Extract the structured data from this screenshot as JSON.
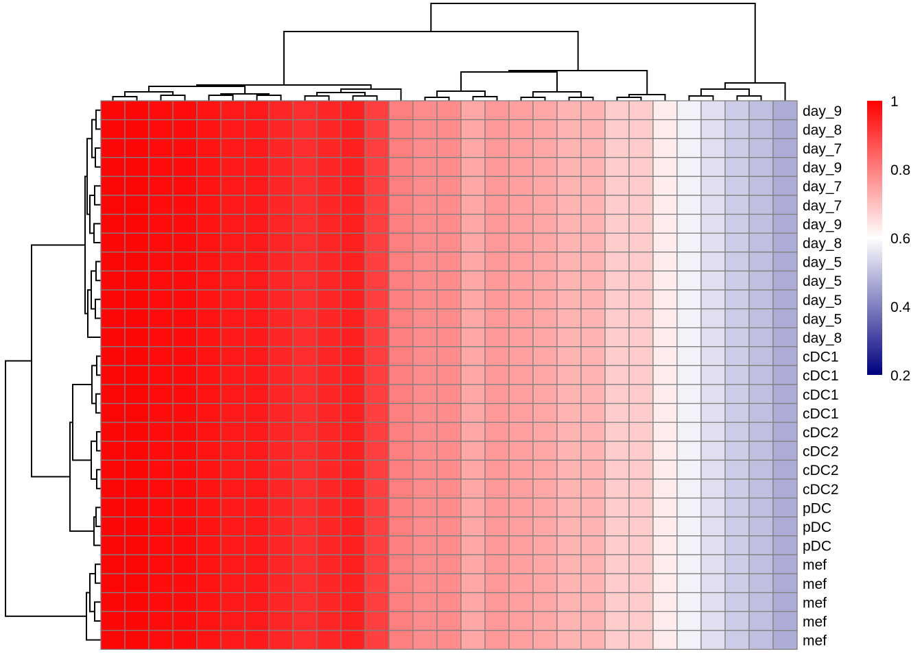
{
  "chart_data": {
    "type": "heatmap",
    "title": "",
    "row_labels": [
      "day_9",
      "day_8",
      "day_7",
      "day_9",
      "day_7",
      "day_7",
      "day_9",
      "day_8",
      "day_5",
      "day_5",
      "day_5",
      "day_5",
      "day_8",
      "cDC1",
      "cDC1",
      "cDC1",
      "cDC1",
      "cDC2",
      "cDC2",
      "cDC2",
      "cDC2",
      "pDC",
      "pDC",
      "pDC",
      "mef",
      "mef",
      "mef",
      "mef",
      "mef"
    ],
    "column_labels": [],
    "values": [
      [
        0.99,
        0.99,
        0.98,
        0.98,
        0.97,
        0.96,
        0.96,
        0.94,
        0.93,
        0.94,
        0.95,
        0.9,
        0.8,
        0.78,
        0.78,
        0.74,
        0.76,
        0.75,
        0.74,
        0.72,
        0.72,
        0.68,
        0.68,
        0.63,
        0.58,
        0.55,
        0.52,
        0.5,
        0.47
      ],
      [
        0.99,
        0.99,
        0.98,
        0.98,
        0.97,
        0.96,
        0.96,
        0.94,
        0.93,
        0.94,
        0.95,
        0.9,
        0.8,
        0.78,
        0.78,
        0.74,
        0.76,
        0.75,
        0.74,
        0.72,
        0.72,
        0.68,
        0.68,
        0.63,
        0.58,
        0.55,
        0.52,
        0.5,
        0.47
      ],
      [
        0.99,
        0.99,
        0.98,
        0.98,
        0.97,
        0.96,
        0.96,
        0.94,
        0.93,
        0.94,
        0.95,
        0.9,
        0.8,
        0.78,
        0.78,
        0.74,
        0.76,
        0.75,
        0.74,
        0.72,
        0.72,
        0.68,
        0.68,
        0.63,
        0.58,
        0.55,
        0.52,
        0.5,
        0.47
      ],
      [
        0.99,
        0.99,
        0.98,
        0.98,
        0.97,
        0.96,
        0.96,
        0.94,
        0.93,
        0.94,
        0.95,
        0.9,
        0.8,
        0.78,
        0.78,
        0.74,
        0.76,
        0.75,
        0.74,
        0.72,
        0.72,
        0.68,
        0.68,
        0.63,
        0.58,
        0.55,
        0.52,
        0.5,
        0.47
      ],
      [
        0.99,
        0.99,
        0.98,
        0.98,
        0.97,
        0.96,
        0.96,
        0.94,
        0.93,
        0.94,
        0.95,
        0.9,
        0.8,
        0.78,
        0.78,
        0.74,
        0.76,
        0.75,
        0.74,
        0.72,
        0.72,
        0.68,
        0.68,
        0.63,
        0.58,
        0.55,
        0.52,
        0.5,
        0.47
      ],
      [
        0.99,
        0.99,
        0.98,
        0.98,
        0.97,
        0.96,
        0.96,
        0.94,
        0.93,
        0.94,
        0.95,
        0.9,
        0.8,
        0.78,
        0.78,
        0.74,
        0.76,
        0.75,
        0.74,
        0.72,
        0.72,
        0.68,
        0.68,
        0.63,
        0.58,
        0.55,
        0.52,
        0.5,
        0.47
      ],
      [
        0.99,
        0.99,
        0.98,
        0.98,
        0.97,
        0.96,
        0.96,
        0.94,
        0.93,
        0.94,
        0.95,
        0.9,
        0.8,
        0.78,
        0.78,
        0.74,
        0.76,
        0.75,
        0.74,
        0.72,
        0.72,
        0.68,
        0.68,
        0.63,
        0.58,
        0.55,
        0.52,
        0.5,
        0.47
      ],
      [
        0.99,
        0.99,
        0.98,
        0.98,
        0.97,
        0.96,
        0.96,
        0.94,
        0.93,
        0.94,
        0.95,
        0.9,
        0.8,
        0.78,
        0.78,
        0.74,
        0.76,
        0.75,
        0.74,
        0.72,
        0.72,
        0.68,
        0.68,
        0.63,
        0.58,
        0.55,
        0.52,
        0.5,
        0.47
      ],
      [
        0.99,
        0.99,
        0.98,
        0.98,
        0.97,
        0.96,
        0.96,
        0.94,
        0.93,
        0.94,
        0.95,
        0.9,
        0.8,
        0.78,
        0.78,
        0.74,
        0.76,
        0.75,
        0.74,
        0.72,
        0.72,
        0.68,
        0.68,
        0.63,
        0.58,
        0.55,
        0.52,
        0.5,
        0.47
      ],
      [
        0.99,
        0.99,
        0.98,
        0.98,
        0.97,
        0.96,
        0.96,
        0.94,
        0.93,
        0.94,
        0.95,
        0.9,
        0.8,
        0.78,
        0.78,
        0.74,
        0.76,
        0.75,
        0.74,
        0.72,
        0.72,
        0.68,
        0.68,
        0.63,
        0.58,
        0.55,
        0.52,
        0.5,
        0.47
      ],
      [
        0.99,
        0.99,
        0.98,
        0.98,
        0.97,
        0.96,
        0.96,
        0.94,
        0.93,
        0.94,
        0.95,
        0.9,
        0.8,
        0.78,
        0.78,
        0.74,
        0.76,
        0.75,
        0.74,
        0.72,
        0.72,
        0.68,
        0.68,
        0.63,
        0.58,
        0.55,
        0.52,
        0.5,
        0.47
      ],
      [
        0.99,
        0.99,
        0.98,
        0.98,
        0.97,
        0.96,
        0.96,
        0.94,
        0.93,
        0.94,
        0.95,
        0.9,
        0.8,
        0.78,
        0.78,
        0.74,
        0.76,
        0.75,
        0.74,
        0.72,
        0.72,
        0.68,
        0.68,
        0.63,
        0.58,
        0.55,
        0.52,
        0.5,
        0.47
      ],
      [
        0.99,
        0.99,
        0.98,
        0.98,
        0.97,
        0.96,
        0.96,
        0.94,
        0.93,
        0.94,
        0.95,
        0.9,
        0.8,
        0.78,
        0.78,
        0.74,
        0.76,
        0.75,
        0.74,
        0.72,
        0.72,
        0.68,
        0.68,
        0.63,
        0.58,
        0.55,
        0.52,
        0.5,
        0.47
      ],
      [
        0.99,
        0.99,
        0.98,
        0.98,
        0.97,
        0.96,
        0.96,
        0.94,
        0.93,
        0.94,
        0.95,
        0.9,
        0.8,
        0.78,
        0.78,
        0.74,
        0.76,
        0.75,
        0.74,
        0.72,
        0.72,
        0.68,
        0.68,
        0.63,
        0.58,
        0.55,
        0.52,
        0.5,
        0.47
      ],
      [
        0.99,
        0.99,
        0.98,
        0.98,
        0.97,
        0.96,
        0.96,
        0.94,
        0.93,
        0.94,
        0.95,
        0.9,
        0.8,
        0.78,
        0.78,
        0.74,
        0.76,
        0.75,
        0.74,
        0.72,
        0.72,
        0.68,
        0.68,
        0.63,
        0.58,
        0.55,
        0.52,
        0.5,
        0.47
      ],
      [
        0.99,
        0.99,
        0.98,
        0.98,
        0.97,
        0.96,
        0.96,
        0.94,
        0.93,
        0.94,
        0.95,
        0.9,
        0.8,
        0.78,
        0.78,
        0.74,
        0.76,
        0.75,
        0.74,
        0.72,
        0.72,
        0.68,
        0.68,
        0.63,
        0.58,
        0.55,
        0.52,
        0.5,
        0.47
      ],
      [
        0.99,
        0.99,
        0.98,
        0.98,
        0.97,
        0.96,
        0.96,
        0.94,
        0.93,
        0.94,
        0.95,
        0.9,
        0.8,
        0.78,
        0.78,
        0.74,
        0.76,
        0.75,
        0.74,
        0.72,
        0.72,
        0.68,
        0.68,
        0.63,
        0.58,
        0.55,
        0.52,
        0.5,
        0.47
      ],
      [
        0.99,
        0.99,
        0.98,
        0.98,
        0.97,
        0.96,
        0.96,
        0.94,
        0.93,
        0.94,
        0.95,
        0.9,
        0.8,
        0.78,
        0.78,
        0.74,
        0.76,
        0.75,
        0.74,
        0.72,
        0.72,
        0.68,
        0.68,
        0.63,
        0.58,
        0.55,
        0.52,
        0.5,
        0.47
      ],
      [
        0.99,
        0.99,
        0.98,
        0.98,
        0.97,
        0.96,
        0.96,
        0.94,
        0.93,
        0.94,
        0.95,
        0.9,
        0.8,
        0.78,
        0.78,
        0.74,
        0.76,
        0.75,
        0.74,
        0.72,
        0.72,
        0.68,
        0.68,
        0.63,
        0.58,
        0.55,
        0.52,
        0.5,
        0.47
      ],
      [
        0.99,
        0.99,
        0.98,
        0.98,
        0.97,
        0.96,
        0.96,
        0.94,
        0.93,
        0.94,
        0.95,
        0.9,
        0.8,
        0.78,
        0.78,
        0.74,
        0.76,
        0.75,
        0.74,
        0.72,
        0.72,
        0.68,
        0.68,
        0.63,
        0.58,
        0.55,
        0.52,
        0.5,
        0.47
      ],
      [
        0.99,
        0.99,
        0.98,
        0.98,
        0.97,
        0.96,
        0.96,
        0.94,
        0.93,
        0.94,
        0.95,
        0.9,
        0.8,
        0.78,
        0.78,
        0.74,
        0.76,
        0.75,
        0.74,
        0.72,
        0.72,
        0.68,
        0.68,
        0.63,
        0.58,
        0.55,
        0.52,
        0.5,
        0.47
      ],
      [
        0.99,
        0.99,
        0.98,
        0.98,
        0.97,
        0.96,
        0.96,
        0.94,
        0.93,
        0.94,
        0.95,
        0.9,
        0.8,
        0.78,
        0.78,
        0.74,
        0.76,
        0.75,
        0.74,
        0.72,
        0.72,
        0.68,
        0.68,
        0.63,
        0.58,
        0.55,
        0.52,
        0.5,
        0.47
      ],
      [
        0.99,
        0.99,
        0.98,
        0.98,
        0.97,
        0.96,
        0.96,
        0.94,
        0.93,
        0.94,
        0.95,
        0.9,
        0.8,
        0.78,
        0.78,
        0.74,
        0.76,
        0.75,
        0.74,
        0.72,
        0.72,
        0.68,
        0.68,
        0.63,
        0.58,
        0.55,
        0.52,
        0.5,
        0.47
      ],
      [
        0.99,
        0.99,
        0.98,
        0.98,
        0.97,
        0.96,
        0.96,
        0.94,
        0.93,
        0.94,
        0.95,
        0.9,
        0.8,
        0.78,
        0.78,
        0.74,
        0.76,
        0.75,
        0.74,
        0.72,
        0.72,
        0.68,
        0.68,
        0.63,
        0.58,
        0.55,
        0.52,
        0.5,
        0.47
      ],
      [
        0.99,
        0.99,
        0.98,
        0.98,
        0.97,
        0.96,
        0.96,
        0.94,
        0.93,
        0.94,
        0.95,
        0.9,
        0.8,
        0.78,
        0.78,
        0.74,
        0.76,
        0.75,
        0.74,
        0.72,
        0.72,
        0.68,
        0.68,
        0.63,
        0.58,
        0.55,
        0.52,
        0.5,
        0.47
      ],
      [
        0.99,
        0.99,
        0.98,
        0.98,
        0.97,
        0.96,
        0.96,
        0.94,
        0.93,
        0.94,
        0.95,
        0.9,
        0.8,
        0.78,
        0.78,
        0.74,
        0.76,
        0.75,
        0.74,
        0.72,
        0.72,
        0.68,
        0.68,
        0.63,
        0.58,
        0.55,
        0.52,
        0.5,
        0.47
      ],
      [
        0.99,
        0.99,
        0.98,
        0.98,
        0.97,
        0.96,
        0.96,
        0.94,
        0.93,
        0.94,
        0.95,
        0.9,
        0.8,
        0.78,
        0.78,
        0.74,
        0.76,
        0.75,
        0.74,
        0.72,
        0.72,
        0.68,
        0.68,
        0.63,
        0.58,
        0.55,
        0.52,
        0.5,
        0.47
      ],
      [
        0.99,
        0.99,
        0.98,
        0.98,
        0.97,
        0.96,
        0.96,
        0.94,
        0.93,
        0.94,
        0.95,
        0.9,
        0.8,
        0.78,
        0.78,
        0.74,
        0.76,
        0.75,
        0.74,
        0.72,
        0.72,
        0.68,
        0.68,
        0.63,
        0.58,
        0.55,
        0.52,
        0.5,
        0.47
      ],
      [
        0.99,
        0.99,
        0.98,
        0.98,
        0.97,
        0.96,
        0.96,
        0.94,
        0.93,
        0.94,
        0.95,
        0.9,
        0.8,
        0.78,
        0.78,
        0.74,
        0.76,
        0.75,
        0.74,
        0.72,
        0.72,
        0.68,
        0.68,
        0.63,
        0.58,
        0.55,
        0.52,
        0.5,
        0.47
      ]
    ],
    "color_scale": {
      "stops": [
        {
          "value": 0.2,
          "color": "#000080"
        },
        {
          "value": 0.6,
          "color": "#ffffff"
        },
        {
          "value": 1.0,
          "color": "#ff0000"
        }
      ],
      "legend_ticks": [
        "1",
        "0.8",
        "0.6",
        "0.4",
        "0.2"
      ],
      "legend_values": [
        1,
        0.8,
        0.6,
        0.4,
        0.2
      ]
    },
    "cell_border_color": "#808080",
    "dendrograms": {
      "row": "left",
      "column": "top"
    }
  }
}
